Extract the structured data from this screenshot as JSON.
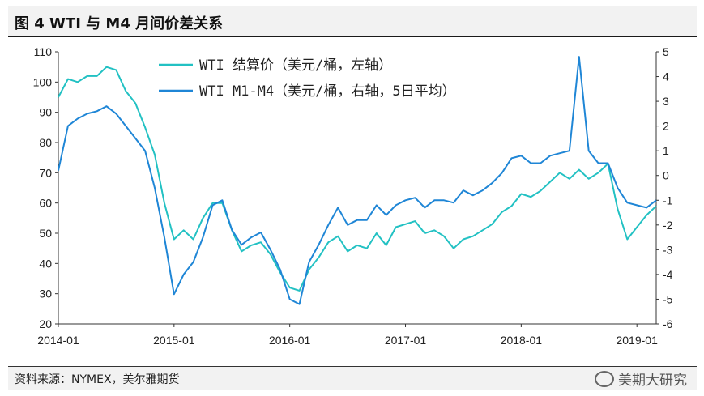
{
  "title": "图 4   WTI 与 M4 月间价差关系",
  "source": "资料来源：NYMEX，美尔雅期货",
  "watermark": "美期大研究",
  "colors": {
    "wti": "#22c1c3",
    "spread": "#1f86d6",
    "axis": "#333333"
  },
  "chart_data": {
    "type": "line",
    "title": "WTI 与 M4 月间价差关系",
    "grid": false,
    "legend_position": "top-center",
    "x_ticks": [
      "2014-01",
      "2015-01",
      "2016-01",
      "2017-01",
      "2018-01",
      "2019-01"
    ],
    "y_left": {
      "ylim": [
        20,
        110
      ],
      "ticks": [
        20,
        30,
        40,
        50,
        60,
        70,
        80,
        90,
        100,
        110
      ]
    },
    "y_right": {
      "ylim": [
        -6,
        5
      ],
      "ticks": [
        -6,
        -5,
        -4,
        -3,
        -2,
        -1,
        0,
        1,
        2,
        3,
        4,
        5
      ]
    },
    "x_range": [
      "2014-01",
      "2019-03"
    ],
    "series": [
      {
        "name": "WTI 结算价（美元/桶，左轴）",
        "axis": "left",
        "x": [
          "2014-01",
          "2014-02",
          "2014-03",
          "2014-04",
          "2014-05",
          "2014-06",
          "2014-07",
          "2014-08",
          "2014-09",
          "2014-10",
          "2014-11",
          "2014-12",
          "2015-01",
          "2015-02",
          "2015-03",
          "2015-04",
          "2015-05",
          "2015-06",
          "2015-07",
          "2015-08",
          "2015-09",
          "2015-10",
          "2015-11",
          "2015-12",
          "2016-01",
          "2016-02",
          "2016-03",
          "2016-04",
          "2016-05",
          "2016-06",
          "2016-07",
          "2016-08",
          "2016-09",
          "2016-10",
          "2016-11",
          "2016-12",
          "2017-01",
          "2017-02",
          "2017-03",
          "2017-04",
          "2017-05",
          "2017-06",
          "2017-07",
          "2017-08",
          "2017-09",
          "2017-10",
          "2017-11",
          "2017-12",
          "2018-01",
          "2018-02",
          "2018-03",
          "2018-04",
          "2018-05",
          "2018-06",
          "2018-07",
          "2018-08",
          "2018-09",
          "2018-10",
          "2018-11",
          "2018-12",
          "2019-01",
          "2019-02",
          "2019-03"
        ],
        "values": [
          95,
          101,
          100,
          102,
          102,
          105,
          104,
          97,
          93,
          85,
          76,
          60,
          48,
          51,
          48,
          55,
          60,
          60,
          51,
          44,
          46,
          47,
          43,
          37,
          32,
          31,
          38,
          42,
          47,
          49,
          44,
          46,
          45,
          50,
          46,
          52,
          53,
          54,
          50,
          51,
          49,
          45,
          48,
          49,
          51,
          53,
          57,
          59,
          63,
          62,
          64,
          67,
          70,
          68,
          71,
          68,
          70,
          73,
          58,
          48,
          52,
          56,
          59
        ]
      },
      {
        "name": "WTI M1-M4（美元/桶，右轴，5日平均）",
        "axis": "right",
        "x": [
          "2014-01",
          "2014-02",
          "2014-03",
          "2014-04",
          "2014-05",
          "2014-06",
          "2014-07",
          "2014-08",
          "2014-09",
          "2014-10",
          "2014-11",
          "2014-12",
          "2015-01",
          "2015-02",
          "2015-03",
          "2015-04",
          "2015-05",
          "2015-06",
          "2015-07",
          "2015-08",
          "2015-09",
          "2015-10",
          "2015-11",
          "2015-12",
          "2016-01",
          "2016-02",
          "2016-03",
          "2016-04",
          "2016-05",
          "2016-06",
          "2016-07",
          "2016-08",
          "2016-09",
          "2016-10",
          "2016-11",
          "2016-12",
          "2017-01",
          "2017-02",
          "2017-03",
          "2017-04",
          "2017-05",
          "2017-06",
          "2017-07",
          "2017-08",
          "2017-09",
          "2017-10",
          "2017-11",
          "2017-12",
          "2018-01",
          "2018-02",
          "2018-03",
          "2018-04",
          "2018-05",
          "2018-06",
          "2018-07",
          "2018-08",
          "2018-09",
          "2018-10",
          "2018-11",
          "2018-12",
          "2019-01",
          "2019-02",
          "2019-03"
        ],
        "values": [
          0.2,
          2.0,
          2.3,
          2.5,
          2.6,
          2.8,
          2.5,
          2.0,
          1.5,
          1.0,
          -0.5,
          -2.5,
          -4.8,
          -4.0,
          -3.5,
          -2.5,
          -1.2,
          -1.0,
          -2.2,
          -2.8,
          -2.5,
          -2.3,
          -3.0,
          -3.8,
          -5.0,
          -5.2,
          -3.5,
          -2.8,
          -2.0,
          -1.3,
          -2.0,
          -1.8,
          -1.8,
          -1.2,
          -1.6,
          -1.2,
          -1.0,
          -0.9,
          -1.3,
          -1.0,
          -1.0,
          -1.1,
          -0.6,
          -0.8,
          -0.6,
          -0.3,
          0.1,
          0.7,
          0.8,
          0.5,
          0.5,
          0.8,
          0.9,
          1.0,
          4.8,
          1.0,
          0.5,
          0.5,
          -0.5,
          -1.1,
          -1.2,
          -1.3,
          -1.0
        ]
      }
    ]
  }
}
